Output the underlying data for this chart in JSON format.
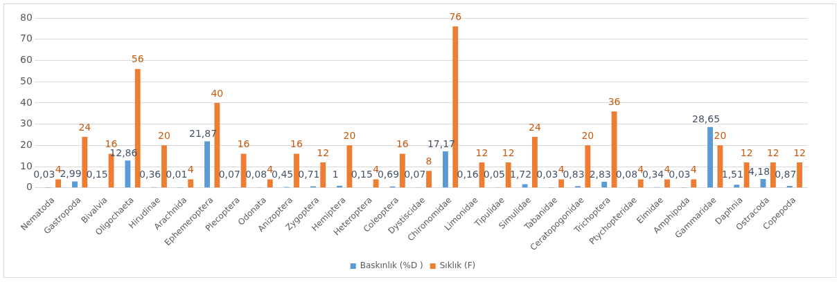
{
  "chart_data": {
    "type": "bar",
    "categories": [
      "Nematoda",
      "Gastropoda",
      "Bivalvia",
      "Oligochaeta",
      "Hirudinae",
      "Arachnida",
      "Ephemeroptera",
      "Plecoptera",
      "Odonata",
      "Anizoptera",
      "Zygoptera",
      "Hemiptera",
      "Heteroptera",
      "Coleoptera",
      "Dystiscidae",
      "Chironomidae",
      "Limonidae",
      "Tipulidae",
      "Simulidae",
      "Tabanidae",
      "Ceratopogonidae",
      "Trichoptera",
      "Ptychopteridae",
      "Elmidae",
      "Amphipoda",
      "Gammaridae",
      "Daphnia",
      "Ostracoda",
      "Copepoda"
    ],
    "series": [
      {
        "name": "Baskınlık (%D )",
        "color": "#5b9bd5",
        "values": [
          0.03,
          2.99,
          0.15,
          12.86,
          0.36,
          0.01,
          21.87,
          0.07,
          0.08,
          0.45,
          0.71,
          1,
          0.15,
          0.69,
          0.07,
          17.17,
          0.16,
          0.05,
          1.72,
          0.03,
          0.83,
          2.83,
          0.08,
          0.34,
          0.03,
          28.65,
          1.51,
          4.18,
          0.87
        ],
        "value_labels": [
          "0,03",
          "2,99",
          "0,15",
          "12,86",
          "0,36",
          "0,01",
          "21,87",
          "0,07",
          "0,08",
          "0,45",
          "0,71",
          "1",
          "0,15",
          "0,69",
          "0,07",
          "17,17",
          "0,16",
          "0,05",
          "1,72",
          "0,03",
          "0,83",
          "2,83",
          "0,08",
          "0,34",
          "0,03",
          "28,65",
          "1,51",
          "4,18",
          "0,87"
        ]
      },
      {
        "name": "Sıklık (F)",
        "color": "#ed7d31",
        "values": [
          4,
          24,
          16,
          56,
          20,
          4,
          40,
          16,
          4,
          16,
          12,
          20,
          4,
          16,
          8,
          76,
          12,
          12,
          24,
          4,
          20,
          36,
          4,
          4,
          4,
          20,
          12,
          12,
          12
        ],
        "value_labels": [
          "4",
          "24",
          "16",
          "56",
          "20",
          "4",
          "40",
          "16",
          "4",
          "16",
          "12",
          "20",
          "4",
          "16",
          "8",
          "76",
          "12",
          "12",
          "24",
          "4",
          "20",
          "36",
          "4",
          "4",
          "4",
          "20",
          "12",
          "12",
          "12"
        ]
      }
    ],
    "ylim": [
      0,
      80
    ],
    "yticks": [
      0,
      10,
      20,
      30,
      40,
      50,
      60,
      70,
      80
    ],
    "grid": "y",
    "legend": "bottom"
  }
}
